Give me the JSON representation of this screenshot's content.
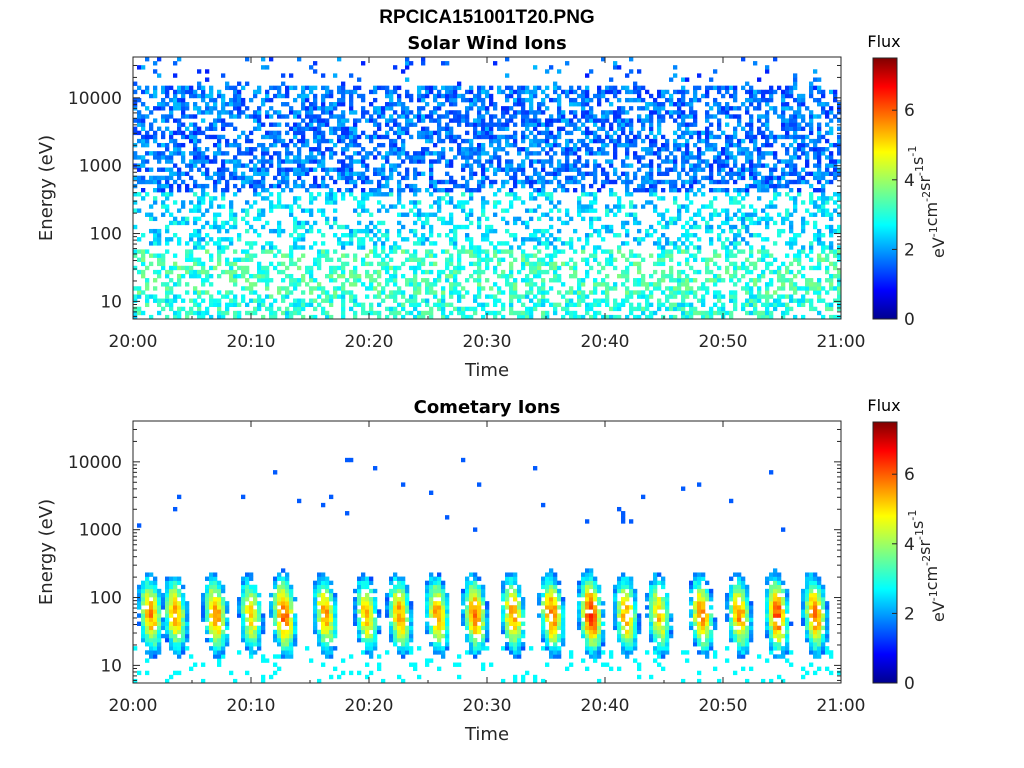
{
  "figure": {
    "title": "RPCICA151001T20.PNG"
  },
  "colorbar": {
    "label": "Flux",
    "unit_label": {
      "base": "eV",
      "e1": "-1",
      "cm": "cm",
      "e2": "-2",
      "sr": "sr",
      "e3": "-1",
      "s": "s",
      "e4": "-1"
    },
    "range": [
      0,
      7.5
    ],
    "ticks": [
      "0",
      "2",
      "4",
      "6"
    ],
    "colormap": "jet"
  },
  "chart_data": [
    {
      "type": "heatmap",
      "title": "Solar Wind Ions",
      "xlabel": "Time",
      "ylabel": "Energy (eV)",
      "x_ticks": [
        "20:00",
        "20:10",
        "20:20",
        "20:30",
        "20:40",
        "20:50",
        "21:00"
      ],
      "y_ticks": [
        "10",
        "100",
        "1000",
        "10000"
      ],
      "y_scale": "log",
      "ylim": [
        5.5,
        40000
      ],
      "xlim": [
        "20:00",
        "21:00"
      ],
      "color_range": [
        0,
        7.5
      ],
      "description_values": {
        "high_energy_flux_range": [
          1.5,
          2.5
        ],
        "low_energy_flux_range": [
          2.5,
          4.5
        ],
        "dense_band_energy_eV": [
          400,
          15000
        ]
      }
    },
    {
      "type": "heatmap",
      "title": "Cometary Ions",
      "xlabel": "Time",
      "ylabel": "Energy (eV)",
      "x_ticks": [
        "20:00",
        "20:10",
        "20:20",
        "20:30",
        "20:40",
        "20:50",
        "21:00"
      ],
      "y_ticks": [
        "10",
        "100",
        "1000",
        "10000"
      ],
      "y_scale": "log",
      "ylim": [
        5.5,
        40000
      ],
      "xlim": [
        "20:00",
        "21:00"
      ],
      "color_range": [
        0,
        7.5
      ],
      "burst_times_min": [
        1.5,
        3.6,
        7.0,
        10.0,
        12.8,
        16.3,
        19.8,
        22.6,
        25.8,
        29.0,
        32.2,
        35.5,
        38.8,
        41.8,
        44.6,
        48.2,
        51.4,
        54.6,
        57.8
      ],
      "burst_peak_flux": [
        5.5,
        5.3,
        5.6,
        5.0,
        6.0,
        5.4,
        5.2,
        5.4,
        5.5,
        5.7,
        5.5,
        5.8,
        6.3,
        5.4,
        5.1,
        5.6,
        5.5,
        6.0,
        5.7
      ],
      "burst_energy_eV": [
        10,
        500
      ]
    }
  ]
}
